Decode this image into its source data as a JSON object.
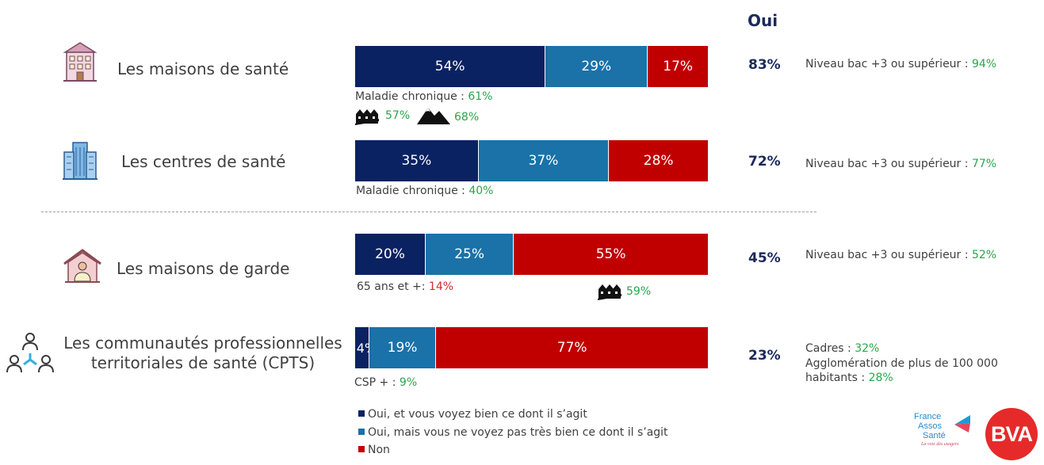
{
  "header": {
    "oui_label": "Oui"
  },
  "colors": {
    "dark_navy": "#0b2262",
    "teal_blue": "#1a72a8",
    "red": "#c00000",
    "green": "#2aa64a",
    "accent_red": "#d42a2a"
  },
  "chart_data": {
    "type": "bar",
    "orientation": "horizontal-stacked-100",
    "categories": [
      "Les maisons de santé",
      "Les centres de santé",
      "Les maisons de garde",
      "Les communautés professionnelles territoriales de santé (CPTS)"
    ],
    "series": [
      {
        "name": "Oui, et vous voyez bien ce dont il s’agit",
        "values": [
          54,
          35,
          20,
          4
        ],
        "labels": [
          "54%",
          "35%",
          "20%",
          "4%"
        ]
      },
      {
        "name": "Oui, mais vous ne voyez pas très bien ce dont il s’agit",
        "values": [
          29,
          37,
          25,
          19
        ],
        "labels": [
          "29%",
          "37%",
          "25%",
          "19%"
        ]
      },
      {
        "name": "Non",
        "values": [
          17,
          28,
          55,
          77
        ],
        "labels": [
          "17%",
          "28%",
          "55%",
          "77%"
        ]
      }
    ],
    "oui_totals": [
      "83%",
      "72%",
      "45%",
      "23%"
    ],
    "legend_position": "bottom-left"
  },
  "rows": [
    {
      "label": "Les maisons de santé",
      "icon": "building-house-icon",
      "notes": [
        {
          "prefix": "Maladie chronique : ",
          "value": "61%"
        }
      ],
      "icon_notes": [
        {
          "icon": "town-houses-icon",
          "value": "57%"
        },
        {
          "icon": "mountains-icon",
          "value": "68%"
        }
      ],
      "right_notes": [
        {
          "prefix": "Niveau bac +3 ou supérieur : ",
          "value": "94%"
        }
      ]
    },
    {
      "label": "Les centres de santé",
      "icon": "office-tower-icon",
      "notes": [
        {
          "prefix": "Maladie chronique : ",
          "value": "40%"
        }
      ],
      "right_notes": [
        {
          "prefix": "Niveau bac +3 ou supérieur : ",
          "value": "77%"
        }
      ]
    },
    {
      "label": "Les maisons de garde",
      "icon": "house-doctor-icon",
      "notes": [
        {
          "prefix": "65 ans et +: ",
          "value": "14%"
        }
      ],
      "icon_notes": [
        {
          "icon": "town-houses-icon",
          "value": "59%"
        }
      ],
      "right_notes": [
        {
          "prefix": "Niveau bac +3 ou supérieur : ",
          "value": "52%"
        }
      ]
    },
    {
      "label_line1": "Les communautés professionnelles",
      "label_line2": "territoriales de santé (CPTS)",
      "icon": "network-people-icon",
      "notes": [
        {
          "prefix": "CSP + : ",
          "value": "9%"
        }
      ],
      "right_notes": [
        {
          "prefix": "Cadres : ",
          "value": "32%"
        },
        {
          "prefix": "Agglomération de plus de 100 000",
          "value": ""
        },
        {
          "prefix": "habitants : ",
          "value": "28%"
        }
      ]
    }
  ],
  "legend": [
    {
      "label": "Oui, et vous voyez bien ce dont il s’agit",
      "color": "#0b2262"
    },
    {
      "label": "Oui, mais vous ne voyez pas très bien ce dont il s’agit",
      "color": "#1a72a8"
    },
    {
      "label": "Non",
      "color": "#c00000"
    }
  ],
  "logos": {
    "france_assos": {
      "line1": "France",
      "line2": "Assos",
      "line3": "Santé",
      "tagline": "La voix des usagers"
    },
    "bva": {
      "text": "BVA"
    }
  }
}
